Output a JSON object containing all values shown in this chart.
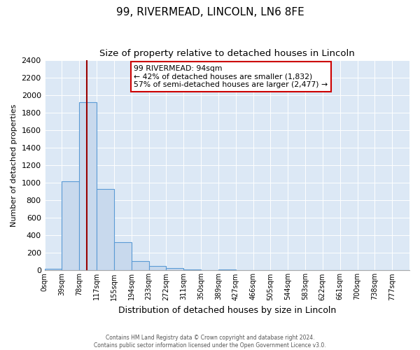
{
  "title": "99, RIVERMEAD, LINCOLN, LN6 8FE",
  "subtitle": "Size of property relative to detached houses in Lincoln",
  "xlabel": "Distribution of detached houses by size in Lincoln",
  "ylabel": "Number of detached properties",
  "footer_line1": "Contains HM Land Registry data © Crown copyright and database right 2024.",
  "footer_line2": "Contains public sector information licensed under the Open Government Licence v3.0.",
  "bin_labels": [
    "0sqm",
    "39sqm",
    "78sqm",
    "117sqm",
    "155sqm",
    "194sqm",
    "233sqm",
    "272sqm",
    "311sqm",
    "350sqm",
    "389sqm",
    "427sqm",
    "466sqm",
    "505sqm",
    "544sqm",
    "583sqm",
    "622sqm",
    "661sqm",
    "700sqm",
    "738sqm",
    "777sqm"
  ],
  "bin_values": [
    20,
    1020,
    1920,
    930,
    320,
    105,
    48,
    25,
    15,
    3,
    8,
    0,
    0,
    0,
    0,
    0,
    0,
    0,
    0,
    0,
    0
  ],
  "bar_color": "#c8d9ed",
  "bar_edge_color": "#5b9bd5",
  "vline_color": "#990000",
  "annotation_text_line1": "99 RIVERMEAD: 94sqm",
  "annotation_text_line2": "← 42% of detached houses are smaller (1,832)",
  "annotation_text_line3": "57% of semi-detached houses are larger (2,477) →",
  "annotation_box_facecolor": "white",
  "annotation_box_edgecolor": "#cc0000",
  "ylim": [
    0,
    2400
  ],
  "yticks": [
    0,
    200,
    400,
    600,
    800,
    1000,
    1200,
    1400,
    1600,
    1800,
    2000,
    2200,
    2400
  ],
  "bg_color": "#dce8f5",
  "grid_color": "#c0cfe0",
  "title_fontsize": 11,
  "subtitle_fontsize": 9.5
}
